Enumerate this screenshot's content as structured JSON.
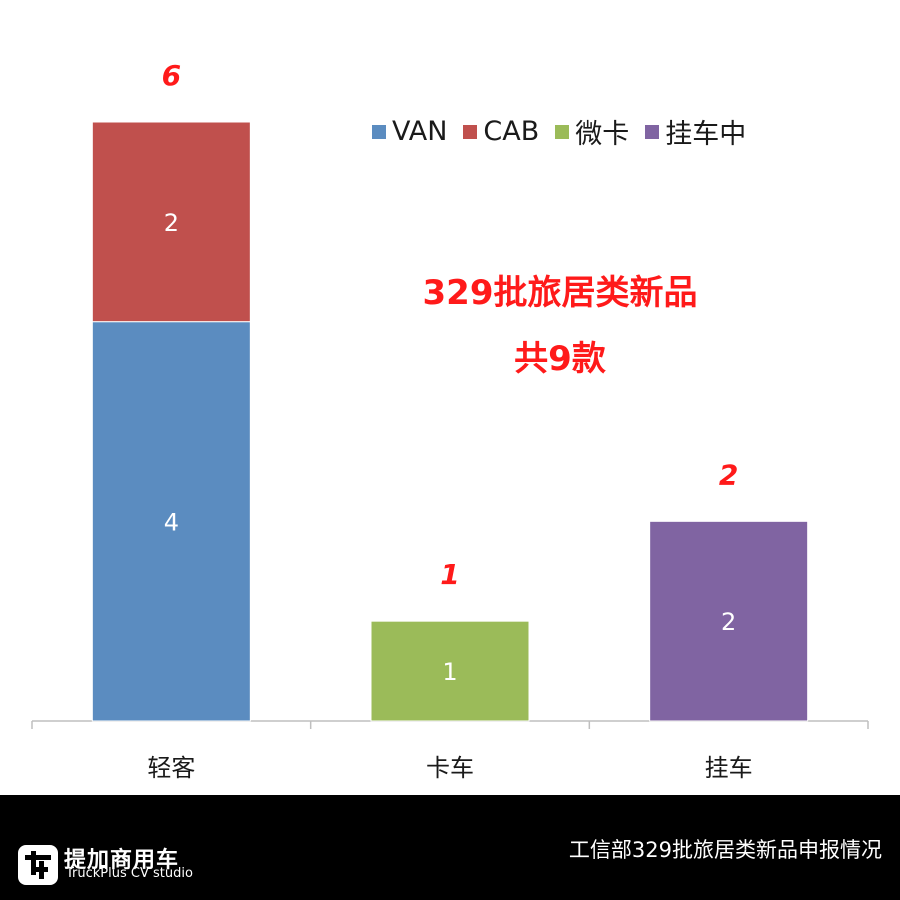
{
  "chart_data": {
    "type": "bar",
    "stacked": true,
    "categories": [
      "轻客",
      "卡车",
      "挂车"
    ],
    "series": [
      {
        "name": "VAN",
        "color": "#5b8cc0",
        "values": [
          4,
          0,
          0
        ]
      },
      {
        "name": "CAB",
        "color": "#c0504d",
        "values": [
          2,
          0,
          0
        ]
      },
      {
        "name": "微卡",
        "color": "#9bbb59",
        "values": [
          0,
          1,
          0
        ]
      },
      {
        "name": "挂车中",
        "color": "#8064a2",
        "values": [
          0,
          0,
          2
        ]
      }
    ],
    "totals": [
      6,
      1,
      2
    ],
    "totals_color": "#ff1a1a",
    "ylim": [
      0,
      6
    ],
    "grid": false,
    "legend_position": "top-right",
    "annotation_lines": [
      "329批旅居类新品",
      "共9款"
    ]
  },
  "footer": {
    "brand_name": "提加商用车",
    "brand_sub": "TruckPlus CV studio",
    "caption": "工信部329批旅居类新品申报情况",
    "logo_icon": "truckplus-logo-icon"
  }
}
